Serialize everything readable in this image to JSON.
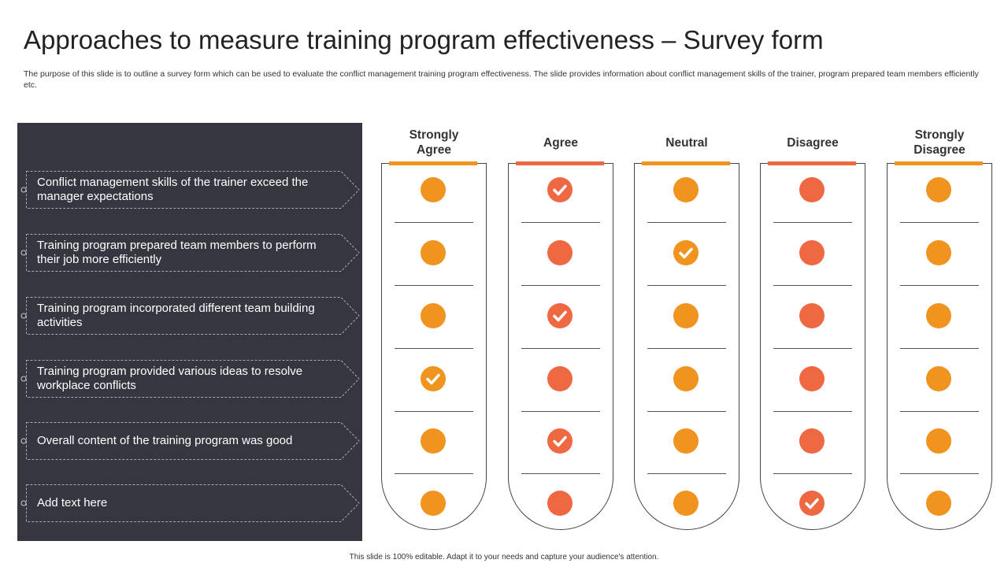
{
  "title": "Approaches to measure training program effectiveness – Survey form",
  "description": "The purpose of this slide is to outline a survey form which can be used to evaluate the conflict management training program effectiveness. The slide provides information about conflict management skills of the trainer, program prepared team members efficiently etc.",
  "statements": [
    "Conflict management skills of the trainer exceed the manager expectations",
    "Training program prepared team members to perform their job more efficiently",
    "Training program incorporated different team building activities",
    "Training program provided various ideas to resolve workplace conflicts",
    "Overall content of the training program was good",
    "Add text here"
  ],
  "columns": [
    {
      "label": "Strongly Agree",
      "color": "#F0931F"
    },
    {
      "label": "Agree",
      "color": "#EE6942"
    },
    {
      "label": "Neutral",
      "color": "#F0931F"
    },
    {
      "label": "Disagree",
      "color": "#EE6942"
    },
    {
      "label": "Strongly Disagree",
      "color": "#F0931F"
    }
  ],
  "selected_column_per_row": [
    "Agree",
    "Neutral",
    "Agree",
    "Strongly Agree",
    "Agree",
    "Disagree"
  ],
  "footer": "This slide is 100% editable. Adapt it to your needs and capture your audience's attention."
}
